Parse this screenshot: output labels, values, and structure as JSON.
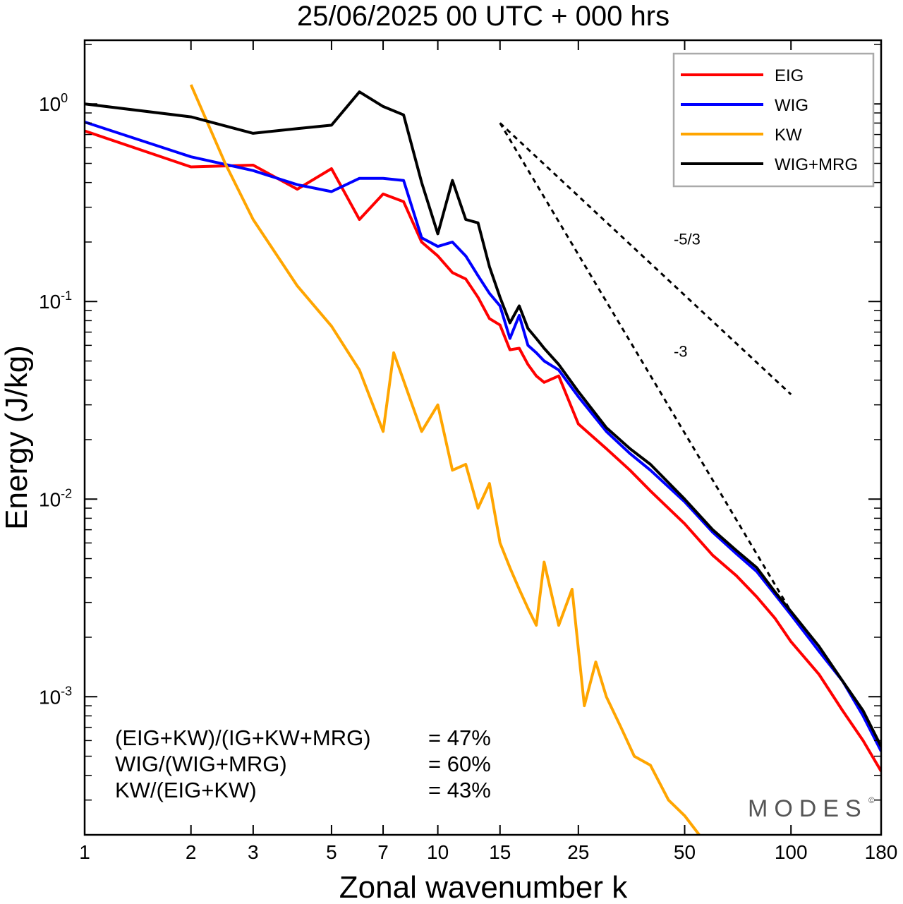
{
  "chart_data": {
    "type": "line",
    "title": "25/06/2025  00 UTC  + 000 hrs",
    "xlabel": "Zonal wavenumber k",
    "ylabel": "Energy (J/kg)",
    "xscale": "log",
    "yscale": "log",
    "xlim": [
      1,
      180
    ],
    "ylim": [
      0.0002,
      2.1
    ],
    "x_ticks": [
      1,
      2,
      3,
      5,
      7,
      10,
      15,
      25,
      50,
      100,
      180
    ],
    "y_ticks": [
      {
        "value": 0.001,
        "base": "10",
        "exp": "-3"
      },
      {
        "value": 0.01,
        "base": "10",
        "exp": "-2"
      },
      {
        "value": 0.1,
        "base": "10",
        "exp": "-1"
      },
      {
        "value": 1,
        "base": "10",
        "exp": "0"
      }
    ],
    "grid": false,
    "legend_position": "top-right",
    "series": [
      {
        "name": "EIG",
        "color": "#ff0000",
        "x": [
          1,
          2,
          3,
          4,
          5,
          6,
          7,
          8,
          9,
          10,
          11,
          12,
          13,
          14,
          15,
          16,
          17,
          18,
          19,
          20,
          22,
          25,
          30,
          35,
          40,
          50,
          60,
          70,
          80,
          90,
          100,
          120,
          140,
          160,
          180
        ],
        "values": [
          0.73,
          0.48,
          0.49,
          0.37,
          0.47,
          0.26,
          0.35,
          0.32,
          0.2,
          0.17,
          0.14,
          0.13,
          0.105,
          0.082,
          0.076,
          0.057,
          0.058,
          0.048,
          0.042,
          0.039,
          0.042,
          0.024,
          0.018,
          0.014,
          0.011,
          0.0075,
          0.0052,
          0.0041,
          0.0032,
          0.0025,
          0.0019,
          0.0013,
          0.00085,
          0.0006,
          0.00042
        ]
      },
      {
        "name": "WIG",
        "color": "#0000ff",
        "x": [
          1,
          2,
          3,
          4,
          5,
          6,
          7,
          8,
          9,
          10,
          11,
          12,
          13,
          14,
          15,
          16,
          17,
          18,
          19,
          20,
          22,
          25,
          30,
          35,
          40,
          50,
          60,
          70,
          80,
          90,
          100,
          120,
          140,
          160,
          180
        ],
        "values": [
          0.81,
          0.54,
          0.46,
          0.39,
          0.36,
          0.42,
          0.42,
          0.41,
          0.21,
          0.19,
          0.2,
          0.17,
          0.135,
          0.11,
          0.095,
          0.065,
          0.085,
          0.06,
          0.055,
          0.05,
          0.045,
          0.033,
          0.022,
          0.017,
          0.014,
          0.0097,
          0.0068,
          0.0053,
          0.0043,
          0.0033,
          0.0026,
          0.0017,
          0.0012,
          0.0008,
          0.00053
        ]
      },
      {
        "name": "KW",
        "color": "#ffa500",
        "x": [
          2,
          2.5,
          3,
          4,
          5,
          6,
          7,
          7.5,
          9,
          10,
          11,
          12,
          13,
          14,
          15,
          16,
          17,
          18,
          19,
          20,
          22,
          24,
          26,
          28,
          30,
          33,
          36,
          40,
          45,
          50,
          55
        ],
        "values": [
          1.25,
          0.5,
          0.26,
          0.12,
          0.075,
          0.045,
          0.022,
          0.055,
          0.022,
          0.03,
          0.014,
          0.015,
          0.009,
          0.012,
          0.006,
          0.0045,
          0.0035,
          0.0028,
          0.0023,
          0.0048,
          0.0023,
          0.0035,
          0.0009,
          0.0015,
          0.001,
          0.0007,
          0.0005,
          0.00045,
          0.0003,
          0.00025,
          0.0002
        ]
      },
      {
        "name": "WIG+MRG",
        "color": "#000000",
        "x": [
          1,
          2,
          3,
          4,
          5,
          6,
          7,
          8,
          9,
          10,
          11,
          12,
          13,
          14,
          15,
          16,
          17,
          18,
          19,
          20,
          22,
          25,
          30,
          35,
          40,
          50,
          60,
          70,
          80,
          90,
          100,
          120,
          140,
          160,
          180
        ],
        "values": [
          1.0,
          0.86,
          0.71,
          0.75,
          0.78,
          1.15,
          0.97,
          0.88,
          0.4,
          0.22,
          0.41,
          0.26,
          0.25,
          0.15,
          0.105,
          0.078,
          0.095,
          0.073,
          0.065,
          0.058,
          0.048,
          0.035,
          0.023,
          0.018,
          0.015,
          0.01,
          0.007,
          0.0055,
          0.0045,
          0.0034,
          0.0027,
          0.0018,
          0.0012,
          0.00085,
          0.00056
        ]
      }
    ],
    "reference_slopes": [
      {
        "label": "-5/3",
        "slope": -1.6667,
        "x0": 15,
        "y0": 0.8,
        "x1": 100
      },
      {
        "label": "-3",
        "slope": -3,
        "x0": 15,
        "y0": 0.8,
        "x1": 100
      }
    ],
    "stats": [
      {
        "label": "(EIG+KW)/(IG+KW+MRG)",
        "value": "= 47%"
      },
      {
        "label": "WIG/(WIG+MRG)",
        "value": "= 60%"
      },
      {
        "label": "KW/(EIG+KW)",
        "value": "= 43%"
      }
    ],
    "watermark": "MODES",
    "watermark_mark": "©"
  }
}
